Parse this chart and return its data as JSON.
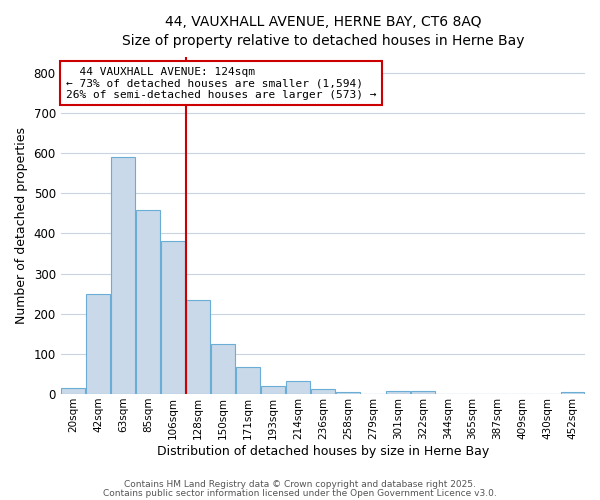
{
  "title_line1": "44, VAUXHALL AVENUE, HERNE BAY, CT6 8AQ",
  "title_line2": "Size of property relative to detached houses in Herne Bay",
  "xlabel": "Distribution of detached houses by size in Herne Bay",
  "ylabel": "Number of detached properties",
  "categories": [
    "20sqm",
    "42sqm",
    "63sqm",
    "85sqm",
    "106sqm",
    "128sqm",
    "150sqm",
    "171sqm",
    "193sqm",
    "214sqm",
    "236sqm",
    "258sqm",
    "279sqm",
    "301sqm",
    "322sqm",
    "344sqm",
    "365sqm",
    "387sqm",
    "409sqm",
    "430sqm",
    "452sqm"
  ],
  "values": [
    15,
    250,
    590,
    458,
    380,
    235,
    125,
    68,
    20,
    32,
    12,
    5,
    0,
    8,
    8,
    0,
    0,
    0,
    0,
    0,
    5
  ],
  "bar_color": "#c9d9ea",
  "bar_edge_color": "#6aaed6",
  "background_color": "#ffffff",
  "grid_color": "#c8d4e0",
  "red_line_x": 4.52,
  "annotation_line1": "  44 VAUXHALL AVENUE: 124sqm",
  "annotation_line2": "← 73% of detached houses are smaller (1,594)",
  "annotation_line3": "26% of semi-detached houses are larger (573) →",
  "annotation_box_color": "#ffffff",
  "annotation_border_color": "#cc0000",
  "red_line_color": "#cc0000",
  "ylim": [
    0,
    840
  ],
  "yticks": [
    0,
    100,
    200,
    300,
    400,
    500,
    600,
    700,
    800
  ],
  "footer_line1": "Contains HM Land Registry data © Crown copyright and database right 2025.",
  "footer_line2": "Contains public sector information licensed under the Open Government Licence v3.0."
}
